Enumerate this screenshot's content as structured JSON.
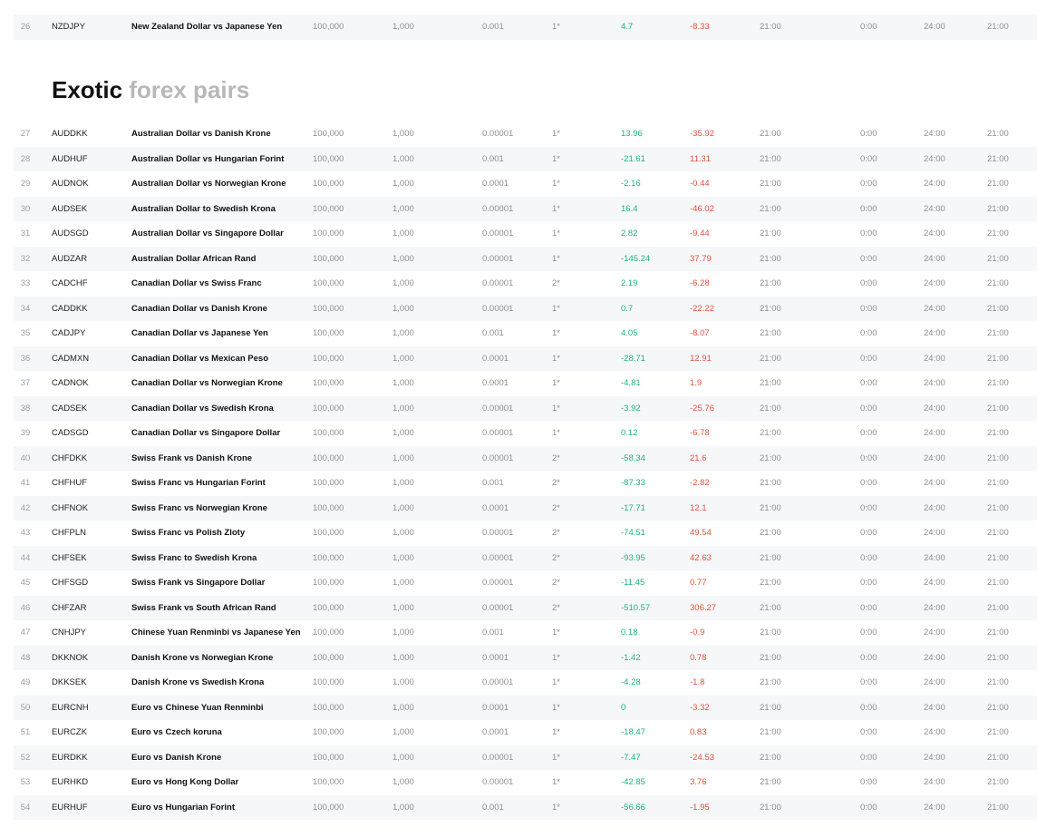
{
  "section": {
    "title_strong": "Exotic",
    "title_light": " forex pairs"
  },
  "top_row": [
    "26",
    "NZDJPY",
    "New Zealand Dollar vs Japanese Yen",
    "100,000",
    "1,000",
    "0.001",
    "1*",
    "4.7",
    "-8.33",
    "21:00",
    "0:00",
    "24:00",
    "21:00"
  ],
  "rows": [
    [
      "27",
      "AUDDKK",
      "Australian Dollar vs Danish Krone",
      "100,000",
      "1,000",
      "0.00001",
      "1*",
      "13.96",
      "-35.92",
      "21:00",
      "0:00",
      "24:00",
      "21:00"
    ],
    [
      "28",
      "AUDHUF",
      "Australian Dollar vs Hungarian Forint",
      "100,000",
      "1,000",
      "0.001",
      "1*",
      "-21.61",
      "11.31",
      "21:00",
      "0:00",
      "24:00",
      "21:00"
    ],
    [
      "29",
      "AUDNOK",
      "Australian Dollar vs Norwegian Krone",
      "100,000",
      "1,000",
      "0.0001",
      "1*",
      "-2.16",
      "-0.44",
      "21:00",
      "0:00",
      "24:00",
      "21:00"
    ],
    [
      "30",
      "AUDSEK",
      "Australian Dollar to Swedish Krona",
      "100,000",
      "1,000",
      "0.00001",
      "1*",
      "16.4",
      "-46.02",
      "21:00",
      "0:00",
      "24:00",
      "21:00"
    ],
    [
      "31",
      "AUDSGD",
      "Australian Dollar vs Singapore Dollar",
      "100,000",
      "1,000",
      "0.00001",
      "1*",
      "2.82",
      "-9.44",
      "21:00",
      "0:00",
      "24:00",
      "21:00"
    ],
    [
      "32",
      "AUDZAR",
      "Australian Dollar African Rand",
      "100,000",
      "1,000",
      "0.00001",
      "1*",
      "-145.24",
      "37.79",
      "21:00",
      "0:00",
      "24:00",
      "21:00"
    ],
    [
      "33",
      "CADCHF",
      "Canadian Dollar vs Swiss Franc",
      "100,000",
      "1,000",
      "0.00001",
      "2*",
      "2.19",
      "-6.28",
      "21:00",
      "0:00",
      "24:00",
      "21:00"
    ],
    [
      "34",
      "CADDKK",
      "Canadian Dollar vs Danish Krone",
      "100,000",
      "1,000",
      "0.00001",
      "1*",
      "0.7",
      "-22.22",
      "21:00",
      "0:00",
      "24:00",
      "21:00"
    ],
    [
      "35",
      "CADJPY",
      "Canadian Dollar vs Japanese Yen",
      "100,000",
      "1,000",
      "0.001",
      "1*",
      "4.05",
      "-8.07",
      "21:00",
      "0:00",
      "24:00",
      "21:00"
    ],
    [
      "36",
      "CADMXN",
      "Canadian Dollar vs Mexican Peso",
      "100,000",
      "1,000",
      "0.0001",
      "1*",
      "-28.71",
      "12.91",
      "21:00",
      "0:00",
      "24:00",
      "21:00"
    ],
    [
      "37",
      "CADNOK",
      "Canadian Dollar vs Norwegian Krone",
      "100,000",
      "1,000",
      "0.0001",
      "1*",
      "-4.81",
      "1.9",
      "21:00",
      "0:00",
      "24:00",
      "21:00"
    ],
    [
      "38",
      "CADSEK",
      "Canadian Dollar vs Swedish Krona",
      "100,000",
      "1,000",
      "0.00001",
      "1*",
      "-3.92",
      "-25.76",
      "21:00",
      "0:00",
      "24:00",
      "21:00"
    ],
    [
      "39",
      "CADSGD",
      "Canadian Dollar vs  Singapore Dollar",
      "100,000",
      "1,000",
      "0.00001",
      "1*",
      "0.12",
      "-6.78",
      "21:00",
      "0:00",
      "24:00",
      "21:00"
    ],
    [
      "40",
      "CHFDKK",
      "Swiss Frank vs Danish Krone",
      "100,000",
      "1,000",
      "0.00001",
      "2*",
      "-58.34",
      "21.6",
      "21:00",
      "0:00",
      "24:00",
      "21:00"
    ],
    [
      "41",
      "CHFHUF",
      "Swiss Franc vs Hungarian Forint",
      "100,000",
      "1,000",
      "0.001",
      "2*",
      "-87.33",
      "-2.82",
      "21:00",
      "0:00",
      "24:00",
      "21:00"
    ],
    [
      "42",
      "CHFNOK",
      "Swiss Franc vs Norwegian Krone",
      "100,000",
      "1,000",
      "0.0001",
      "2*",
      "-17.71",
      "12.1",
      "21:00",
      "0:00",
      "24:00",
      "21:00"
    ],
    [
      "43",
      "CHFPLN",
      "Swiss Franc vs Polish Zloty",
      "100,000",
      "1,000",
      "0.00001",
      "2*",
      "-74.51",
      "49.54",
      "21:00",
      "0:00",
      "24:00",
      "21:00"
    ],
    [
      "44",
      "CHFSEK",
      "Swiss Franc to Swedish Krona",
      "100,000",
      "1,000",
      "0.00001",
      "2*",
      "-93.95",
      "42.63",
      "21:00",
      "0:00",
      "24:00",
      "21:00"
    ],
    [
      "45",
      "CHFSGD",
      "Swiss Frank vs Singapore Dollar",
      "100,000",
      "1,000",
      "0.00001",
      "2*",
      "-11.45",
      "0.77",
      "21:00",
      "0:00",
      "24:00",
      "21:00"
    ],
    [
      "46",
      "CHFZAR",
      "Swiss Frank vs South African Rand",
      "100,000",
      "1,000",
      "0.00001",
      "2*",
      "-510.57",
      "306.27",
      "21:00",
      "0:00",
      "24:00",
      "21:00"
    ],
    [
      "47",
      "CNHJPY",
      "Chinese Yuan Renminbi vs Japanese Yen",
      "100,000",
      "1,000",
      "0.001",
      "1*",
      "0.18",
      "-0.9",
      "21:00",
      "0:00",
      "24:00",
      "21:00"
    ],
    [
      "48",
      "DKKNOK",
      "Danish Krone vs Norwegian Krone",
      "100,000",
      "1,000",
      "0.0001",
      "1*",
      "-1.42",
      "0.78",
      "21:00",
      "0:00",
      "24:00",
      "21:00"
    ],
    [
      "49",
      "DKKSEK",
      "Danish Krone vs Swedish Krona",
      "100,000",
      "1,000",
      "0.00001",
      "1*",
      "-4.28",
      "-1.8",
      "21:00",
      "0:00",
      "24:00",
      "21:00"
    ],
    [
      "50",
      "EURCNH",
      "Euro vs Chinese Yuan Renminbi",
      "100,000",
      "1,000",
      "0.0001",
      "1*",
      "0",
      "-3.32",
      "21:00",
      "0:00",
      "24:00",
      "21:00"
    ],
    [
      "51",
      "EURCZK",
      "Euro vs Czech koruna",
      "100,000",
      "1,000",
      "0.0001",
      "1*",
      "-18.47",
      "0.83",
      "21:00",
      "0:00",
      "24:00",
      "21:00"
    ],
    [
      "52",
      "EURDKK",
      "Euro vs Danish Krone",
      "100,000",
      "1,000",
      "0.00001",
      "1*",
      "-7.47",
      "-24.53",
      "21:00",
      "0:00",
      "24:00",
      "21:00"
    ],
    [
      "53",
      "EURHKD",
      "Euro vs Hong Kong Dollar",
      "100,000",
      "1,000",
      "0.00001",
      "1*",
      "-42.85",
      "3.76",
      "21:00",
      "0:00",
      "24:00",
      "21:00"
    ],
    [
      "54",
      "EURHUF",
      "Euro vs Hungarian Forint",
      "100,000",
      "1,000",
      "0.001",
      "1*",
      "-56.66",
      "-1.95",
      "21:00",
      "0:00",
      "24:00",
      "21:00"
    ]
  ]
}
